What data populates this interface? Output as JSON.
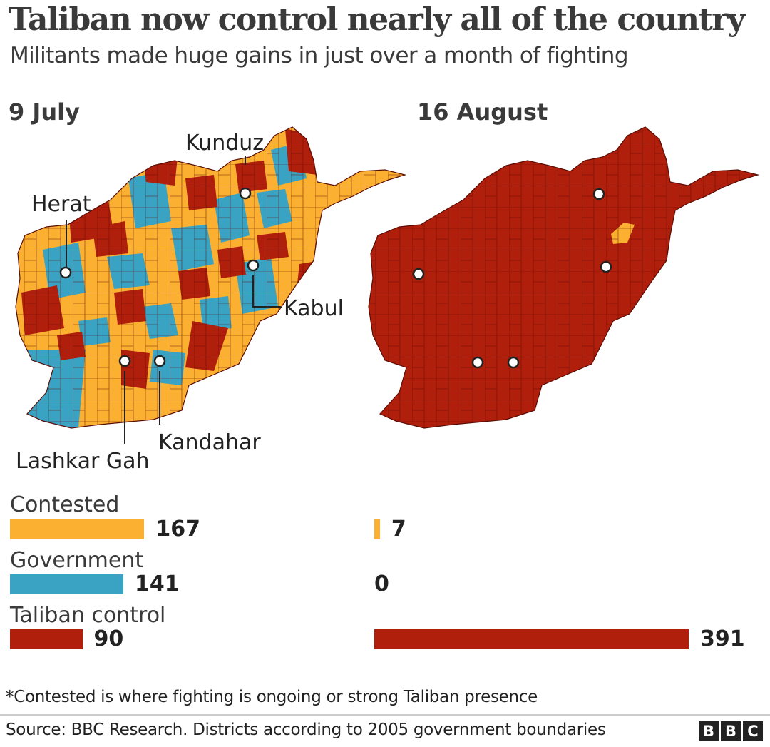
{
  "header": {
    "title": "Taliban now control nearly all of the country",
    "subtitle": "Militants made huge gains in just over a month of fighting"
  },
  "colors": {
    "contested": "#fbb031",
    "government": "#3aa3c3",
    "taliban": "#b01e0c"
  },
  "panels": [
    {
      "date": "9 July"
    },
    {
      "date": "16 August"
    }
  ],
  "cities": {
    "kunduz": "Kunduz",
    "herat": "Herat",
    "kabul": "Kabul",
    "kandahar": "Kandahar",
    "lashkar_gah": "Lashkar Gah"
  },
  "chart_data": {
    "type": "bar",
    "categories": [
      "Contested",
      "Government",
      "Taliban control"
    ],
    "series": [
      {
        "name": "9 July",
        "values": [
          167,
          141,
          90
        ]
      },
      {
        "name": "16 August",
        "values": [
          7,
          0,
          391
        ]
      }
    ],
    "xlim": [
      0,
      391
    ]
  },
  "footer": {
    "note": "*Contested is where fighting is ongoing or strong Taliban presence",
    "source": "Source: BBC Research. Districts according to 2005 government boundaries",
    "logo": [
      "B",
      "B",
      "C"
    ]
  }
}
